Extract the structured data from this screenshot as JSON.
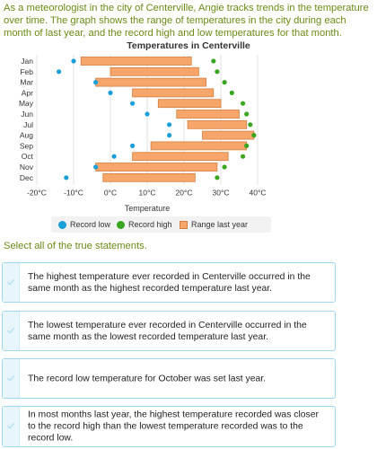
{
  "intro": "As a meteorologist in the city of Centerville, Angie tracks trends in the temperature over time. The graph shows the range of temperatures in the city during each month of last year, and the record high and low temperatures for that month.",
  "chart_data": {
    "type": "range-bar",
    "title": "Temperatures in Centerville",
    "xlabel": "Temperature",
    "xlim": [
      -20,
      40
    ],
    "ticks": [
      "-20°C",
      "-10°C",
      "0°C",
      "10°C",
      "20°C",
      "30°C",
      "40°C"
    ],
    "tick_values": [
      -20,
      -10,
      0,
      10,
      20,
      30,
      40
    ],
    "categories": [
      "Jan",
      "Feb",
      "Mar",
      "Apr",
      "May",
      "Jun",
      "Jul",
      "Aug",
      "Sep",
      "Oct",
      "Nov",
      "Dec"
    ],
    "range_low": [
      -8,
      0,
      -4,
      6,
      13,
      18,
      21,
      25,
      11,
      6,
      -4,
      -2
    ],
    "range_high": [
      22,
      24,
      26,
      28,
      30,
      35,
      37,
      39,
      37,
      32,
      29,
      23
    ],
    "record_low": [
      -10,
      -14,
      -4,
      0,
      6,
      10,
      16,
      16,
      6,
      1,
      -4,
      -12
    ],
    "record_high": [
      28,
      29,
      31,
      33,
      36,
      37,
      38,
      39,
      37,
      36,
      31,
      29
    ],
    "series": [
      {
        "name": "Record low",
        "color": "#1a9fd8"
      },
      {
        "name": "Record high",
        "color": "#3aa51f"
      },
      {
        "name": "Range last year",
        "color": "#f7a66b"
      }
    ],
    "grid": true,
    "legend": "bottom"
  },
  "prompt": "Select all of the true statements.",
  "options": [
    {
      "text": "The highest temperature ever recorded in Centerville occurred in the same month as the highest recorded temperature last year."
    },
    {
      "text": "The lowest temperature ever recorded in Centerville occurred in the same month as the lowest recorded temperature last year."
    },
    {
      "text": "The record low temperature for October was set last year."
    },
    {
      "text": "In most months last year, the highest temperature recorded was closer to the record high than the lowest temperature recorded was to the record low."
    }
  ],
  "icons": {
    "option": "check-icon"
  }
}
